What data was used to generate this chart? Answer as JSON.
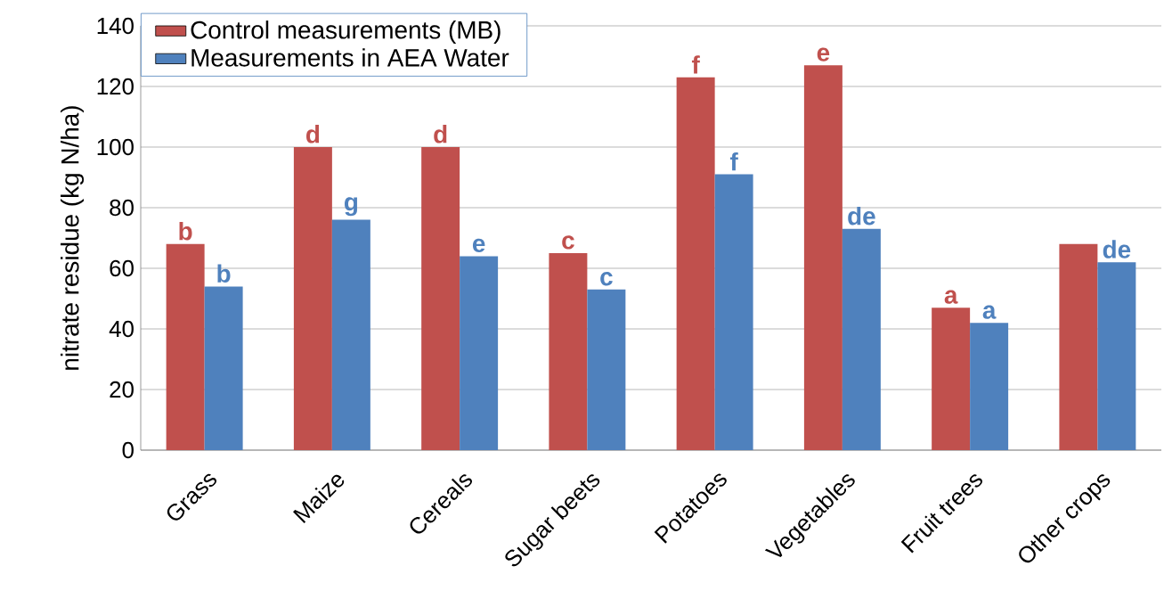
{
  "chart_data": {
    "type": "bar",
    "ylabel": "nitrate residue (kg N/ha)",
    "categories": [
      "Grass",
      "Maize",
      "Cereals",
      "Sugar beets",
      "Potatoes",
      "Vegetables",
      "Fruit trees",
      "Other crops"
    ],
    "series": [
      {
        "name": "Control measurements (MB)",
        "color": "#c0504d",
        "values": [
          68,
          100,
          100,
          65,
          123,
          127,
          47,
          68
        ],
        "value_labels": [
          "b",
          "d",
          "d",
          "c",
          "f",
          "e",
          "a",
          null
        ]
      },
      {
        "name": "Measurements in AEA Water",
        "color": "#4f81bd",
        "values": [
          54,
          76,
          64,
          53,
          91,
          73,
          42,
          62
        ],
        "value_labels": [
          "b",
          "g",
          "e",
          "c",
          "f",
          "de",
          "a",
          "de"
        ]
      }
    ],
    "ylim": [
      0,
      140
    ],
    "yticks": [
      0,
      20,
      40,
      60,
      80,
      100,
      120,
      140
    ],
    "grid": "y",
    "legend": "top left"
  }
}
